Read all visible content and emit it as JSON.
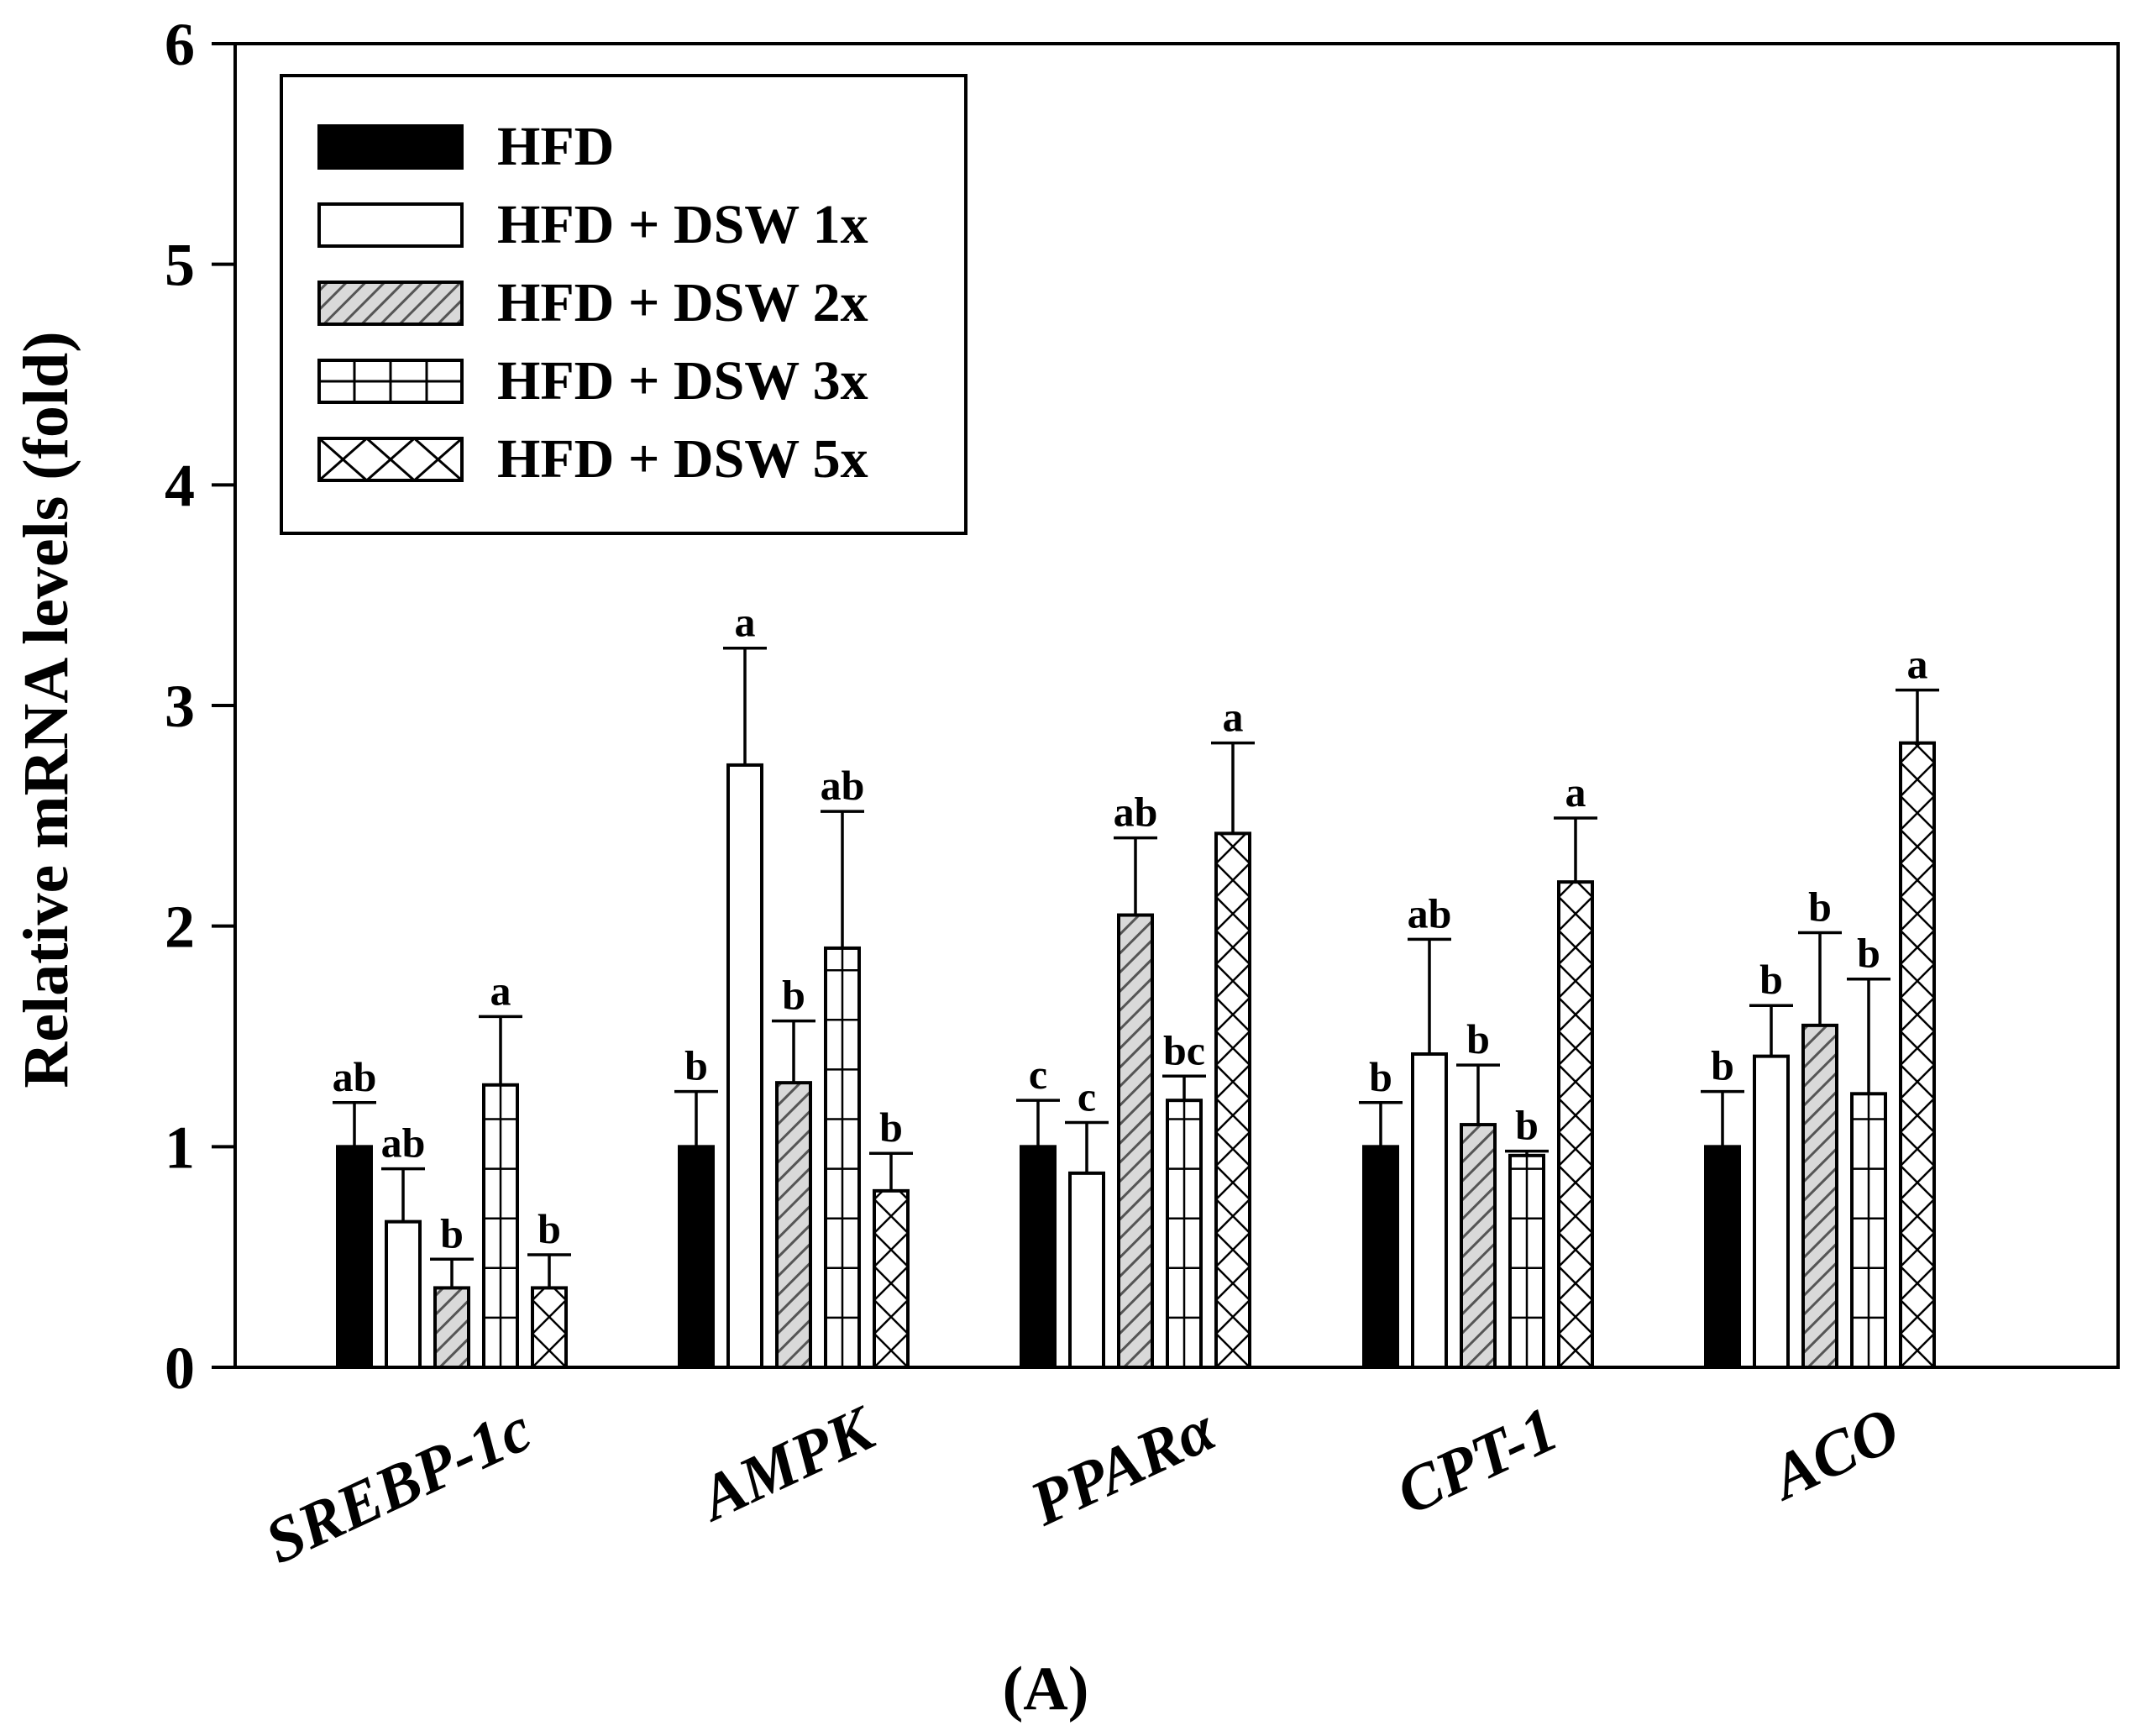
{
  "chart_data": {
    "type": "bar",
    "ylabel": "Relative mRNA levels (fold)",
    "xlabel": "",
    "ylim": [
      0,
      6
    ],
    "yticks": [
      "0",
      "1",
      "2",
      "3",
      "4",
      "5",
      "6"
    ],
    "categories": [
      "SREBP-1c",
      "AMPK",
      "PPARα",
      "CPT-1",
      "ACO"
    ],
    "series": [
      {
        "name": "HFD",
        "pattern": "solid-black",
        "values": [
          1.0,
          1.0,
          1.0,
          1.0,
          1.0
        ],
        "errors": [
          0.2,
          0.25,
          0.21,
          0.2,
          0.25
        ],
        "labels": [
          "ab",
          "b",
          "c",
          "b",
          "b"
        ]
      },
      {
        "name": "HFD + DSW 1x",
        "pattern": "white",
        "values": [
          0.66,
          2.73,
          0.88,
          1.42,
          1.41
        ],
        "errors": [
          0.24,
          0.53,
          0.23,
          0.52,
          0.23
        ],
        "labels": [
          "ab",
          "a",
          "c",
          "ab",
          "b"
        ]
      },
      {
        "name": "HFD + DSW 2x",
        "pattern": "diagonal-hatch",
        "values": [
          0.36,
          1.29,
          2.05,
          1.1,
          1.55
        ],
        "errors": [
          0.13,
          0.28,
          0.35,
          0.27,
          0.42
        ],
        "labels": [
          "b",
          "b",
          "ab",
          "b",
          "b"
        ]
      },
      {
        "name": "HFD + DSW 3x",
        "pattern": "grid",
        "values": [
          1.28,
          1.9,
          1.21,
          0.96,
          1.24
        ],
        "errors": [
          0.31,
          0.62,
          0.11,
          0.02,
          0.52
        ],
        "labels": [
          "a",
          "ab",
          "bc",
          "b",
          "b"
        ]
      },
      {
        "name": "HFD + DSW 5x",
        "pattern": "cross-hatch",
        "values": [
          0.36,
          0.8,
          2.42,
          2.2,
          2.83
        ],
        "errors": [
          0.15,
          0.17,
          0.41,
          0.29,
          0.24
        ],
        "labels": [
          "b",
          "b",
          "a",
          "a",
          "a"
        ]
      }
    ],
    "legend_position": "top-left",
    "grid": false,
    "panel_label": "(A)"
  }
}
